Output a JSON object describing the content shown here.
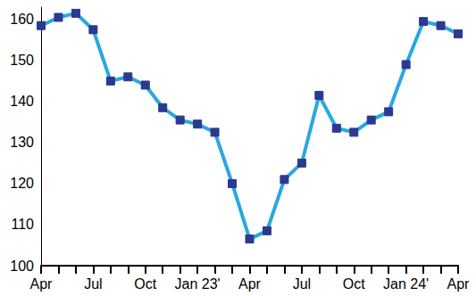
{
  "chart_data": {
    "type": "line",
    "categories": [
      "Apr",
      null,
      null,
      "Jul",
      null,
      null,
      "Oct",
      null,
      null,
      "Jan 23'",
      null,
      null,
      "Apr",
      null,
      null,
      "Jul",
      null,
      null,
      "Oct",
      null,
      null,
      "Jan 24'",
      null,
      null,
      "Apr"
    ],
    "values": [
      158.5,
      160.5,
      161.5,
      157.5,
      145,
      146,
      144,
      138.5,
      135.5,
      134.5,
      132.5,
      120,
      106.5,
      108.5,
      121,
      125,
      141.5,
      133.5,
      132.5,
      135.5,
      137.5,
      149,
      159.5,
      158.5,
      156.5
    ],
    "color": "#29a8e0",
    "marker": "square",
    "ylim": [
      100,
      163
    ],
    "yticks": [
      100,
      110,
      120,
      130,
      140,
      150,
      160
    ],
    "grid": false
  }
}
